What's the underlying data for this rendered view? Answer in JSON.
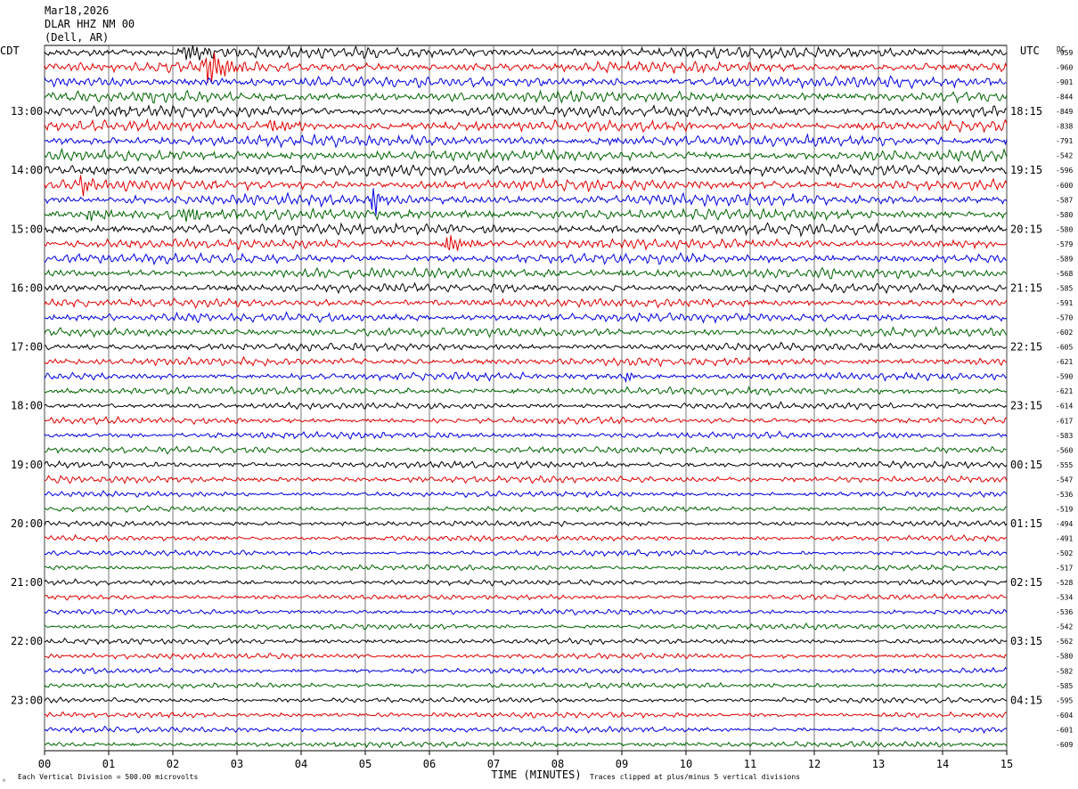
{
  "header": {
    "date": "Mar18,2026",
    "station": "DLAR HHZ NM 00",
    "location": "(Dell, AR)"
  },
  "left_label": "CDT",
  "right_label": "UTC",
  "dc_label": "DC",
  "footer": {
    "scale": "Each Vertical Division =  500.00 microvolts",
    "xlabel": "TIME (MINUTES)",
    "clip": "Traces clipped at plus/minus 5 vertical divisions",
    "corner_mark": "ᴬ"
  },
  "colors": {
    "trace_cycle": [
      "#000000",
      "#e00000",
      "#0000e0",
      "#006400"
    ],
    "grid": "#000000",
    "background": "#ffffff"
  },
  "chart_data": {
    "type": "helicorder",
    "x": [
      0,
      1,
      2,
      3,
      4,
      5,
      6,
      7,
      8,
      9,
      10,
      11,
      12,
      13,
      14,
      15
    ],
    "x_tick_labels": [
      "00",
      "01",
      "02",
      "03",
      "04",
      "05",
      "06",
      "07",
      "08",
      "09",
      "10",
      "11",
      "12",
      "13",
      "14",
      "15"
    ],
    "xlabel": "TIME (MINUTES)",
    "xlim": [
      0,
      15
    ],
    "minutes_per_line": 15,
    "row_count": 48,
    "left_time_labels": [
      {
        "row": 4,
        "label": "13:00"
      },
      {
        "row": 8,
        "label": "14:00"
      },
      {
        "row": 12,
        "label": "15:00"
      },
      {
        "row": 16,
        "label": "16:00"
      },
      {
        "row": 20,
        "label": "17:00"
      },
      {
        "row": 24,
        "label": "18:00"
      },
      {
        "row": 28,
        "label": "19:00"
      },
      {
        "row": 32,
        "label": "20:00"
      },
      {
        "row": 36,
        "label": "21:00"
      },
      {
        "row": 40,
        "label": "22:00"
      },
      {
        "row": 44,
        "label": "23:00"
      }
    ],
    "right_time_labels": [
      {
        "row": 4,
        "label": "18:15"
      },
      {
        "row": 8,
        "label": "19:15"
      },
      {
        "row": 12,
        "label": "20:15"
      },
      {
        "row": 16,
        "label": "21:15"
      },
      {
        "row": 20,
        "label": "22:15"
      },
      {
        "row": 24,
        "label": "23:15"
      },
      {
        "row": 28,
        "label": "00:15"
      },
      {
        "row": 32,
        "label": "01:15"
      },
      {
        "row": 36,
        "label": "02:15"
      },
      {
        "row": 40,
        "label": "03:15"
      },
      {
        "row": 44,
        "label": "04:15"
      }
    ],
    "dc_offsets": [
      -959,
      -960,
      -901,
      -844,
      -849,
      -838,
      -791,
      -542,
      -596,
      -600,
      -587,
      -580,
      -580,
      -579,
      -589,
      -568,
      -585,
      -591,
      -570,
      -602,
      -605,
      -621,
      -590,
      -621,
      -614,
      -617,
      -583,
      -560,
      -555,
      -547,
      -536,
      -519,
      -494,
      -491,
      -502,
      -517,
      -528,
      -534,
      -536,
      -542,
      -562,
      -580,
      -582,
      -585,
      -595,
      -604,
      -601,
      -609
    ],
    "trace_amplitude": [
      5,
      5,
      5,
      5,
      5,
      5,
      5,
      5,
      5,
      5,
      5,
      5,
      5,
      4.5,
      4.5,
      4.5,
      4,
      4,
      4,
      4,
      3.5,
      3.5,
      3.5,
      3.5,
      3,
      3,
      3,
      3,
      3,
      3,
      2.5,
      2.5,
      2.5,
      2.5,
      2.5,
      2.5,
      2.5,
      2.5,
      2.5,
      2.5,
      2.5,
      2.5,
      2.5,
      2.5,
      2.5,
      2.5,
      2.5,
      2.5
    ],
    "events": [
      {
        "row": 0,
        "minute": 2.2,
        "amplitude": 10,
        "duration_min": 1.0
      },
      {
        "row": 1,
        "minute": 2.55,
        "amplitude": 18,
        "duration_min": 0.7
      },
      {
        "row": 5,
        "minute": 3.5,
        "amplitude": 7,
        "duration_min": 0.8
      },
      {
        "row": 9,
        "minute": 0.6,
        "amplitude": 12,
        "duration_min": 0.3
      },
      {
        "row": 10,
        "minute": 5.15,
        "amplitude": 17,
        "duration_min": 0.2
      },
      {
        "row": 11,
        "minute": 0.7,
        "amplitude": 8,
        "duration_min": 0.6
      },
      {
        "row": 11,
        "minute": 2.2,
        "amplitude": 10,
        "duration_min": 0.8
      },
      {
        "row": 13,
        "minute": 6.3,
        "amplitude": 14,
        "duration_min": 0.5
      },
      {
        "row": 22,
        "minute": 9.1,
        "amplitude": 6,
        "duration_min": 0.15
      }
    ]
  }
}
